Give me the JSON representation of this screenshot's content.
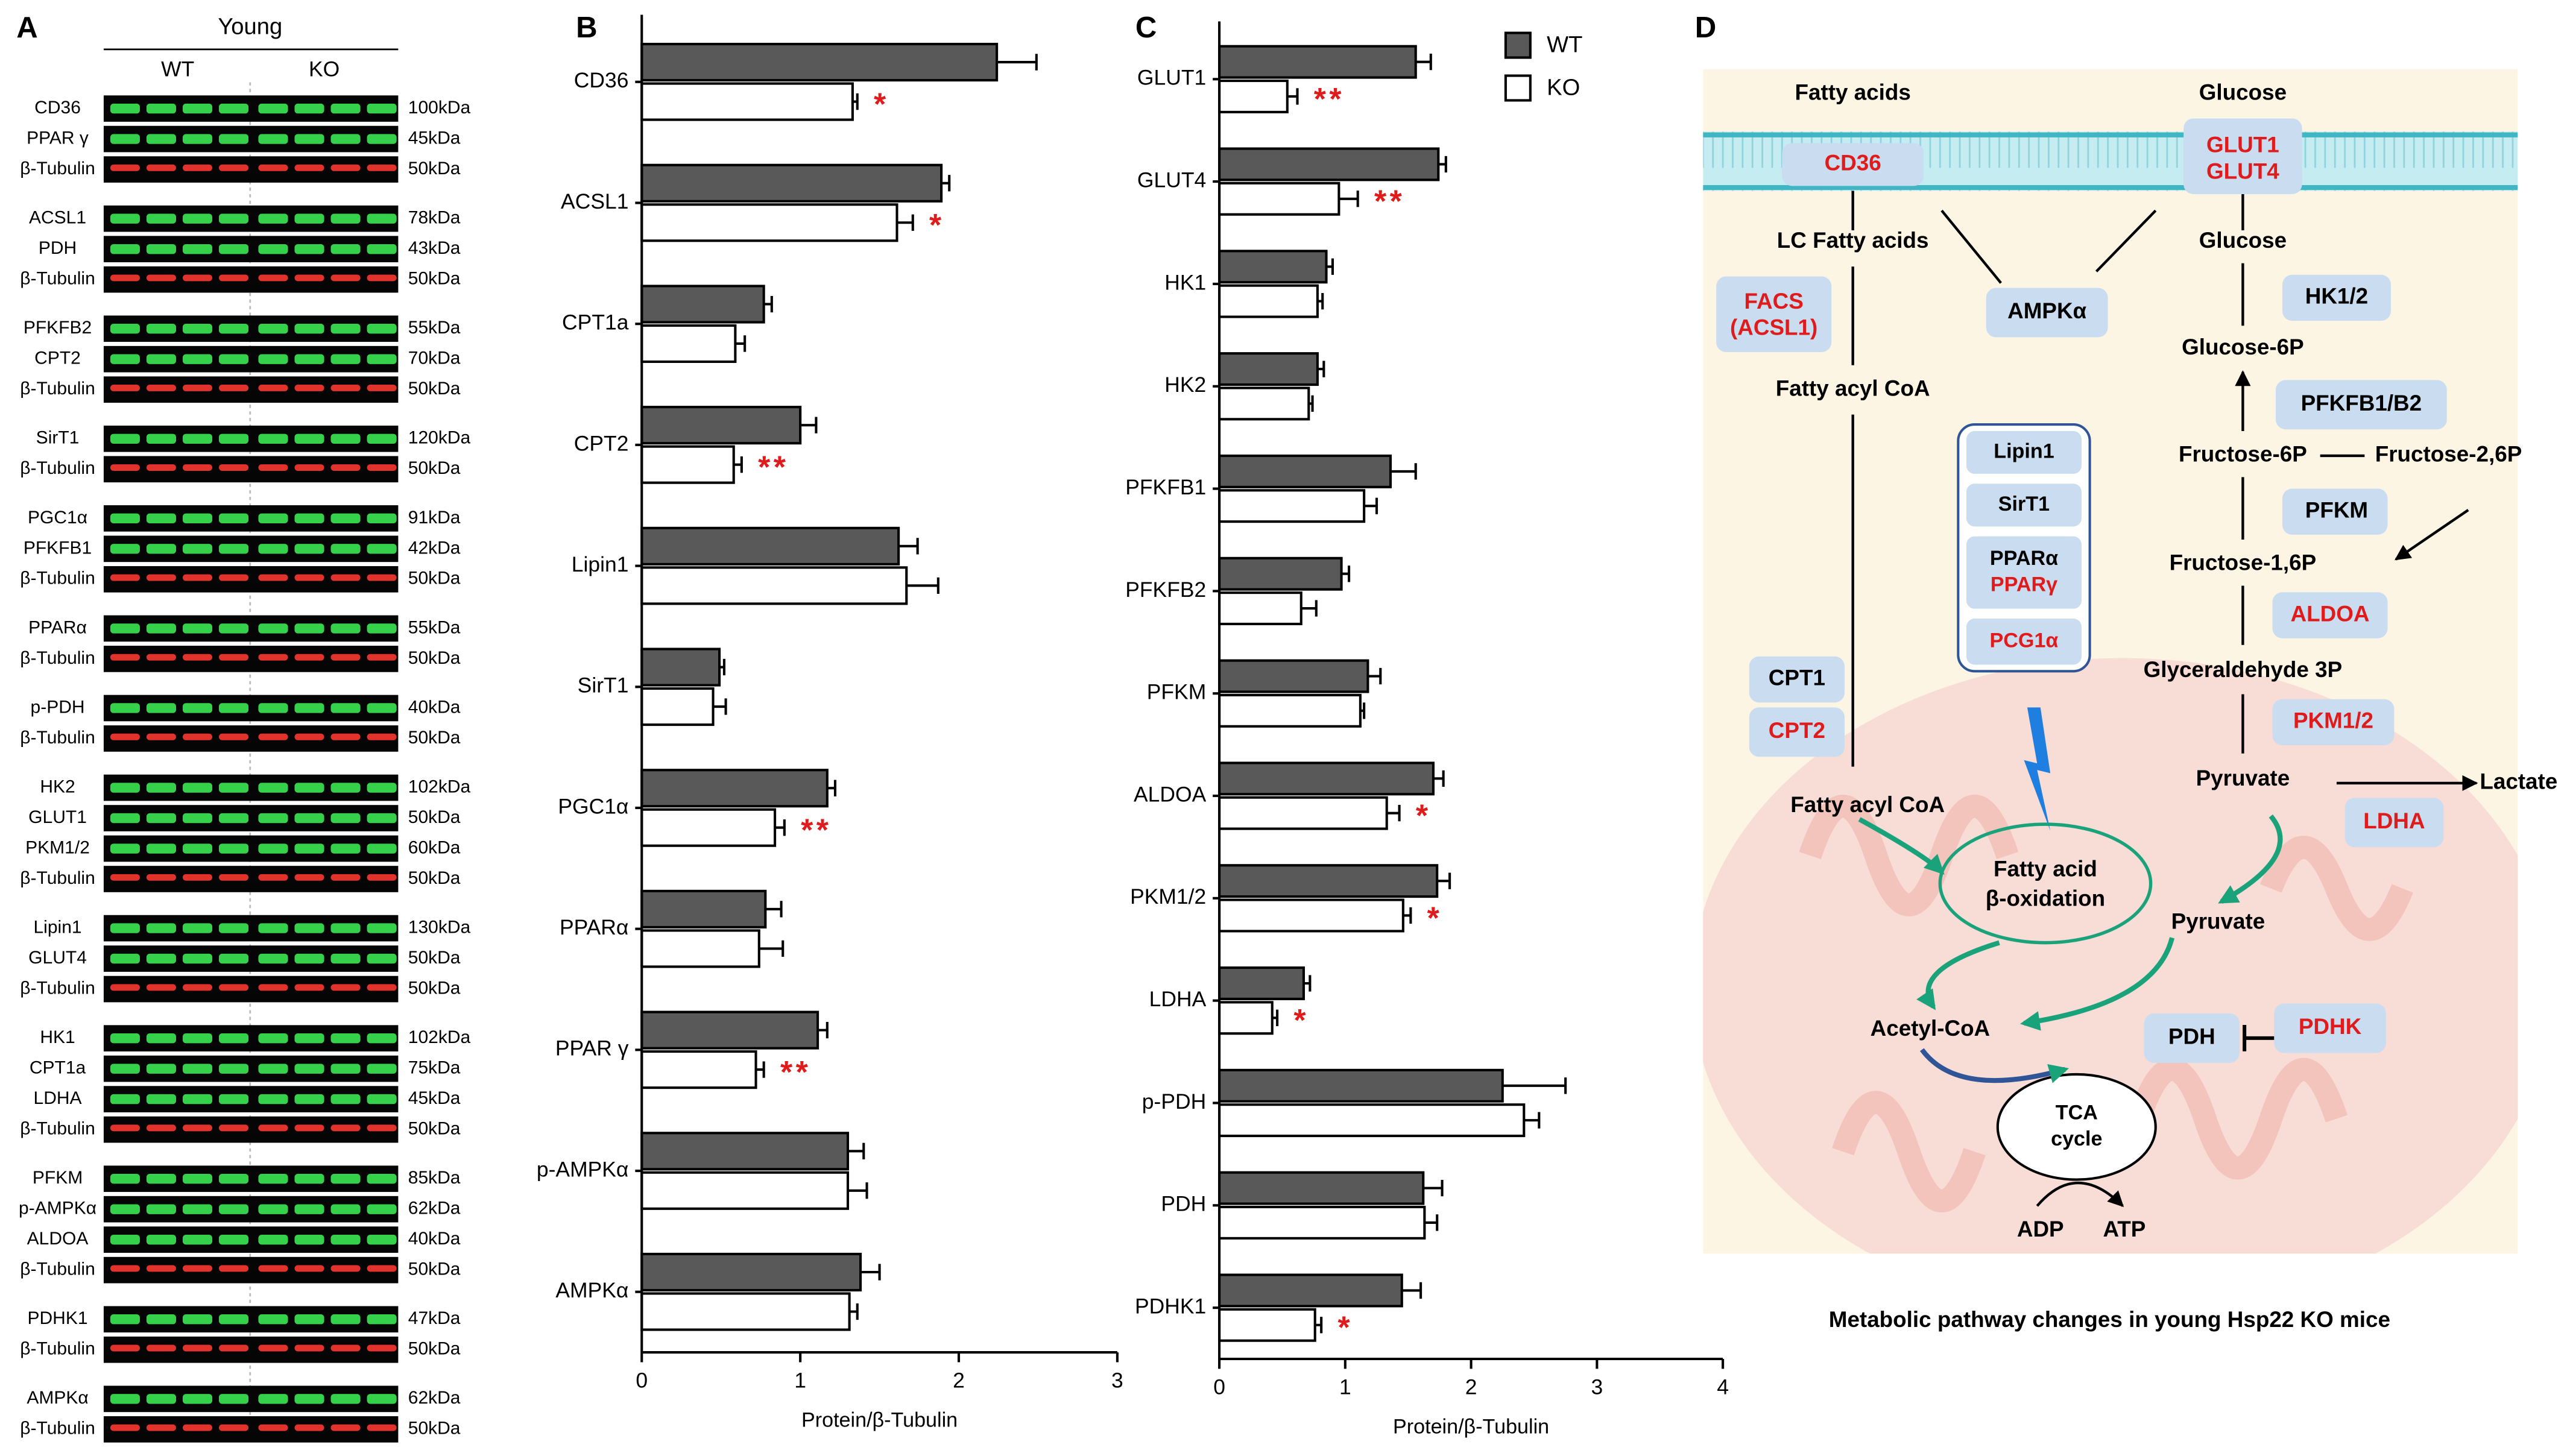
{
  "panels": {
    "a": "A",
    "b": "B",
    "c": "C",
    "d": "D"
  },
  "blots": {
    "group_label": "Young",
    "lanes": [
      "WT",
      "KO"
    ],
    "groups": [
      [
        {
          "protein": "CD36",
          "size": "100kDa"
        },
        {
          "protein": "PPAR γ",
          "size": "45kDa"
        },
        {
          "protein": "β-Tubulin",
          "size": "50kDa"
        }
      ],
      [
        {
          "protein": "ACSL1",
          "size": "78kDa"
        },
        {
          "protein": "PDH",
          "size": "43kDa"
        },
        {
          "protein": "β-Tubulin",
          "size": "50kDa"
        }
      ],
      [
        {
          "protein": "PFKFB2",
          "size": "55kDa"
        },
        {
          "protein": "CPT2",
          "size": "70kDa"
        },
        {
          "protein": "β-Tubulin",
          "size": "50kDa"
        }
      ],
      [
        {
          "protein": "SirT1",
          "size": "120kDa"
        },
        {
          "protein": "β-Tubulin",
          "size": "50kDa"
        }
      ],
      [
        {
          "protein": "PGC1α",
          "size": "91kDa"
        },
        {
          "protein": "PFKFB1",
          "size": "42kDa"
        },
        {
          "protein": "β-Tubulin",
          "size": "50kDa"
        }
      ],
      [
        {
          "protein": "PPARα",
          "size": "55kDa"
        },
        {
          "protein": "β-Tubulin",
          "size": "50kDa"
        }
      ],
      [
        {
          "protein": "p-PDH",
          "size": "40kDa"
        },
        {
          "protein": "β-Tubulin",
          "size": "50kDa"
        }
      ],
      [
        {
          "protein": "HK2",
          "size": "102kDa"
        },
        {
          "protein": "GLUT1",
          "size": "50kDa"
        },
        {
          "protein": "PKM1/2",
          "size": "60kDa"
        },
        {
          "protein": "β-Tubulin",
          "size": "50kDa"
        }
      ],
      [
        {
          "protein": "Lipin1",
          "size": "130kDa"
        },
        {
          "protein": "GLUT4",
          "size": "50kDa"
        },
        {
          "protein": "β-Tubulin",
          "size": "50kDa"
        }
      ],
      [
        {
          "protein": "HK1",
          "size": "102kDa"
        },
        {
          "protein": "CPT1a",
          "size": "75kDa"
        },
        {
          "protein": "LDHA",
          "size": "45kDa"
        },
        {
          "protein": "β-Tubulin",
          "size": "50kDa"
        }
      ],
      [
        {
          "protein": "PFKM",
          "size": "85kDa"
        },
        {
          "protein": "p-AMPKα",
          "size": "62kDa"
        },
        {
          "protein": "ALDOA",
          "size": "40kDa"
        },
        {
          "protein": "β-Tubulin",
          "size": "50kDa"
        }
      ],
      [
        {
          "protein": "PDHK1",
          "size": "47kDa"
        },
        {
          "protein": "β-Tubulin",
          "size": "50kDa"
        }
      ],
      [
        {
          "protein": "AMPKα",
          "size": "62kDa"
        },
        {
          "protein": "β-Tubulin",
          "size": "50kDa"
        }
      ]
    ]
  },
  "chart_data": [
    {
      "type": "bar",
      "orientation": "horizontal",
      "xlabel": "Protein/β-Tubulin",
      "categories": [
        "CD36",
        "ACSL1",
        "CPT1a",
        "CPT2",
        "Lipin1",
        "SirT1",
        "PGC1α",
        "PPARα",
        "PPAR γ",
        "p-AMPKα",
        "AMPKα"
      ],
      "series": [
        {
          "color": "#595959",
          "values": [
            2.24,
            1.89,
            0.77,
            1.0,
            1.62,
            0.49,
            1.17,
            0.78,
            1.11,
            1.3,
            1.38
          ],
          "errors": [
            0.25,
            0.05,
            0.05,
            0.1,
            0.12,
            0.03,
            0.05,
            0.1,
            0.06,
            0.1,
            0.12
          ]
        },
        {
          "color": "#ffffff",
          "values": [
            1.33,
            1.61,
            0.59,
            0.58,
            1.67,
            0.45,
            0.84,
            0.74,
            0.72,
            1.3,
            1.31
          ],
          "errors": [
            0.03,
            0.1,
            0.06,
            0.05,
            0.2,
            0.08,
            0.06,
            0.15,
            0.05,
            0.12,
            0.05
          ],
          "significance": [
            "*",
            "*",
            null,
            "**",
            null,
            null,
            "**",
            null,
            "**",
            null,
            null
          ]
        }
      ],
      "xlim": [
        0,
        3
      ],
      "xticks": [
        0,
        1,
        2,
        3
      ],
      "legend": false
    },
    {
      "type": "bar",
      "orientation": "horizontal",
      "xlabel": "Protein/β-Tubulin",
      "categories": [
        "GLUT1",
        "GLUT4",
        "HK1",
        "HK2",
        "PFKFB1",
        "PFKFB2",
        "PFKM",
        "ALDOA",
        "PKM1/2",
        "LDHA",
        "p-PDH",
        "PDH",
        "PDHK1"
      ],
      "series": [
        {
          "name": "WT",
          "color": "#595959",
          "values": [
            1.56,
            1.74,
            0.85,
            0.78,
            1.36,
            0.97,
            1.18,
            1.7,
            1.73,
            0.67,
            2.25,
            1.62,
            1.45
          ],
          "errors": [
            0.12,
            0.06,
            0.05,
            0.05,
            0.2,
            0.06,
            0.1,
            0.08,
            0.1,
            0.05,
            0.5,
            0.15,
            0.15
          ]
        },
        {
          "name": "KO",
          "color": "#ffffff",
          "values": [
            0.54,
            0.95,
            0.78,
            0.71,
            1.15,
            0.65,
            1.12,
            1.33,
            1.46,
            0.42,
            2.42,
            1.63,
            0.76
          ],
          "errors": [
            0.08,
            0.15,
            0.04,
            0.03,
            0.1,
            0.12,
            0.03,
            0.1,
            0.06,
            0.04,
            0.12,
            0.1,
            0.05
          ],
          "significance": [
            "**",
            "**",
            null,
            null,
            null,
            null,
            null,
            "*",
            "*",
            "*",
            null,
            null,
            "*"
          ]
        }
      ],
      "xlim": [
        0,
        4
      ],
      "xticks": [
        0,
        1,
        2,
        3,
        4
      ],
      "legend": "upper right"
    }
  ],
  "diagram": {
    "fatty_acids": "Fatty acids",
    "glucose_in": "Glucose",
    "cd36": "CD36",
    "glut1": "GLUT1",
    "glut4": "GLUT4",
    "lc_fatty_acids": "LC Fatty acids",
    "glucose": "Glucose",
    "ampk": "AMPKα",
    "facs": "FACS",
    "acsl1": "(ACSL1)",
    "hk12": "HK1/2",
    "fatty_acyl_coa": "Fatty acyl CoA",
    "glucose_6p": "Glucose-6P",
    "pfkfb": "PFKFB1/B2",
    "fructose_6p": "Fructose-6P",
    "fructose_26p": "Fructose-2,6P",
    "pfkm": "PFKM",
    "fructose_16p": "Fructose-1,6P",
    "aldoa": "ALDOA",
    "gap": "Glyceraldehyde 3P",
    "pkm": "PKM1/2",
    "pyruvate": "Pyruvate",
    "lactate": "Lactate",
    "ldha": "LDHA",
    "lipin1": "Lipin1",
    "sirt1": "SirT1",
    "ppara": "PPARα",
    "pparg": "PPARγ",
    "pcg1a": "PCG1α",
    "cpt1": "CPT1",
    "cpt2": "CPT2",
    "fatty_acyl_coa_mito": "Fatty acyl CoA",
    "beta_ox_1": "Fatty acid",
    "beta_ox_2": "β-oxidation",
    "pyruvate_mito": "Pyruvate",
    "acetyl_coa": "Acetyl-CoA",
    "pdh": "PDH",
    "pdhk": "PDHK",
    "tca_1": "TCA",
    "tca_2": "cycle",
    "adp": "ADP",
    "atp": "ATP",
    "caption": "Metabolic pathway changes  in young Hsp22 KO mice"
  }
}
